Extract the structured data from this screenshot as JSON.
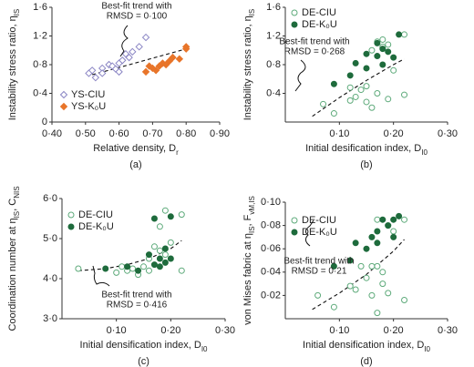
{
  "chart_data": [
    {
      "type": "scatter",
      "panel_label": "(a)",
      "x_label": [
        "Relative density, D",
        "r"
      ],
      "y_label": [
        "Instability stress ratio, η",
        "IS"
      ],
      "xlim": [
        0.4,
        0.9
      ],
      "ylim": [
        0,
        1.6
      ],
      "xticks": [
        {
          "value": 0.4,
          "label": "0·40"
        },
        {
          "value": 0.5,
          "label": "0·50"
        },
        {
          "value": 0.6,
          "label": "0·60"
        },
        {
          "value": 0.7,
          "label": "0·70"
        },
        {
          "value": 0.8,
          "label": "0·80"
        },
        {
          "value": 0.9,
          "label": "0·90"
        }
      ],
      "yticks": [
        0,
        {
          "value": 0.4,
          "label": "0·4"
        },
        {
          "value": 0.8,
          "label": "0·8"
        },
        {
          "value": 1.2,
          "label": "1·2"
        },
        {
          "value": 1.6,
          "label": "1·6"
        }
      ],
      "marker": "diamond",
      "legend": "lower left",
      "series": [
        {
          "name": "YS-CIU",
          "color": "#8a85c4",
          "filled": false,
          "x": [
            0.51,
            0.52,
            0.53,
            0.55,
            0.55,
            0.57,
            0.58,
            0.59,
            0.6,
            0.61,
            0.62,
            0.63,
            0.64,
            0.66,
            0.68,
            0.6
          ],
          "values": [
            0.68,
            0.72,
            0.62,
            0.75,
            0.68,
            0.8,
            0.78,
            0.74,
            0.82,
            0.86,
            0.95,
            0.9,
            0.98,
            1.05,
            1.18,
            0.7
          ]
        },
        {
          "name": "YS-K₀U",
          "color": "#e8752a",
          "filled": true,
          "x": [
            0.68,
            0.7,
            0.72,
            0.73,
            0.75,
            0.76,
            0.78,
            0.8,
            0.8,
            0.69,
            0.71,
            0.74
          ],
          "values": [
            0.7,
            0.75,
            0.78,
            0.82,
            0.85,
            0.9,
            0.88,
            1.02,
            1.05,
            0.78,
            0.72,
            0.8
          ]
        }
      ],
      "trend": {
        "x": [
          0.52,
          0.6,
          0.7,
          0.8
        ],
        "y": [
          0.66,
          0.76,
          0.89,
          1.02
        ]
      },
      "annotation": [
        "Best-fit trend with",
        "RMSD = 0·100"
      ]
    },
    {
      "type": "scatter",
      "panel_label": "(b)",
      "x_label": [
        "Initial desification index, D",
        "I0"
      ],
      "y_label": [
        "Instability stress ratio, η",
        "IS"
      ],
      "xlim": [
        0,
        0.3
      ],
      "ylim": [
        0,
        1.6
      ],
      "xticks": [
        {
          "value": 0.1,
          "label": "0·10"
        },
        {
          "value": 0.2,
          "label": "0·20"
        },
        {
          "value": 0.3,
          "label": "0·30"
        }
      ],
      "yticks": [
        {
          "value": 0.4,
          "label": "0·4"
        },
        {
          "value": 0.8,
          "label": "0·8"
        },
        {
          "value": 1.2,
          "label": "1·2"
        },
        {
          "value": 1.6,
          "label": "1·6"
        }
      ],
      "marker": "circle",
      "legend": "upper left",
      "series": [
        {
          "name": "DE-CIU",
          "color": "#5daa7a",
          "filled": false,
          "x": [
            0.07,
            0.09,
            0.12,
            0.13,
            0.14,
            0.15,
            0.16,
            0.16,
            0.17,
            0.18,
            0.18,
            0.19,
            0.2,
            0.22,
            0.22,
            0.17,
            0.19,
            0.12,
            0.15
          ],
          "values": [
            0.25,
            0.12,
            0.48,
            0.35,
            0.45,
            0.28,
            0.2,
            1.0,
            1.12,
            1.05,
            1.15,
            1.08,
            0.72,
            1.22,
            0.38,
            0.4,
            0.32,
            0.3,
            0.5
          ]
        },
        {
          "name": "DE-K₀U",
          "color": "#1e6b3c",
          "filled": true,
          "x": [
            0.09,
            0.12,
            0.13,
            0.15,
            0.15,
            0.17,
            0.18,
            0.18,
            0.19,
            0.2,
            0.21,
            0.17
          ],
          "values": [
            0.53,
            0.65,
            0.82,
            0.95,
            0.75,
            0.92,
            0.8,
            1.02,
            0.98,
            0.9,
            1.22,
            1.1
          ]
        }
      ],
      "trend": {
        "x": [
          0.05,
          0.1,
          0.15,
          0.2,
          0.22
        ],
        "y": [
          0.08,
          0.34,
          0.58,
          0.8,
          0.88
        ]
      },
      "annotation": [
        "Best-fit trend with",
        "RMSD = 0·268"
      ]
    },
    {
      "type": "scatter",
      "panel_label": "(c)",
      "x_label": [
        "Initial densification index, D",
        "I0"
      ],
      "y_label": [
        "Coordination number at η",
        "IS",
        ", C",
        "NIS"
      ],
      "xlim": [
        0,
        0.3
      ],
      "ylim": [
        3,
        6
      ],
      "xticks": [
        {
          "value": 0.1,
          "label": "0·10"
        },
        {
          "value": 0.2,
          "label": "0·20"
        },
        {
          "value": 0.3,
          "label": "0·30"
        }
      ],
      "yticks": [
        {
          "value": 3,
          "label": "3·0"
        },
        {
          "value": 4,
          "label": "4·0"
        },
        {
          "value": 5,
          "label": "5·0"
        },
        {
          "value": 6,
          "label": "6·0"
        }
      ],
      "marker": "circle",
      "legend": "upper left",
      "series": [
        {
          "name": "DE-CIU",
          "color": "#5daa7a",
          "filled": false,
          "x": [
            0.03,
            0.1,
            0.12,
            0.13,
            0.15,
            0.16,
            0.17,
            0.18,
            0.19,
            0.2,
            0.22,
            0.22,
            0.16,
            0.18,
            0.19,
            0.14,
            0.11
          ],
          "values": [
            4.25,
            4.15,
            4.2,
            4.25,
            4.3,
            4.2,
            4.8,
            5.3,
            5.7,
            4.9,
            5.6,
            4.2,
            4.5,
            4.7,
            4.6,
            4.1,
            4.3
          ]
        },
        {
          "name": "DE-K₀U",
          "color": "#1e6b3c",
          "filled": true,
          "x": [
            0.08,
            0.12,
            0.14,
            0.17,
            0.18,
            0.19,
            0.2,
            0.17,
            0.2,
            0.16,
            0.18,
            0.19
          ],
          "values": [
            4.25,
            4.3,
            4.2,
            4.35,
            4.3,
            4.4,
            4.5,
            5.5,
            5.55,
            4.6,
            4.5,
            4.75
          ]
        }
      ],
      "trend": {
        "x": [
          0.03,
          0.08,
          0.12,
          0.16,
          0.2,
          0.22
        ],
        "y": [
          4.2,
          4.25,
          4.35,
          4.5,
          4.75,
          4.95
        ]
      },
      "annotation": [
        "Best-fit trend with",
        "RMSD = 0·416"
      ]
    },
    {
      "type": "scatter",
      "panel_label": "(d)",
      "x_label": [
        "Initial densification index, D",
        "I0"
      ],
      "y_label": [
        "von Mises fabric at η",
        "IS",
        ", F",
        "vM,IS"
      ],
      "xlim": [
        0,
        0.3
      ],
      "ylim": [
        0,
        0.1
      ],
      "xticks": [
        {
          "value": 0.1,
          "label": "0·10"
        },
        {
          "value": 0.2,
          "label": "0·20"
        },
        {
          "value": 0.3,
          "label": "0·30"
        }
      ],
      "yticks": [
        {
          "value": 0.02,
          "label": "0·02"
        },
        {
          "value": 0.04,
          "label": "0·04"
        },
        {
          "value": 0.06,
          "label": "0·06"
        },
        {
          "value": 0.08,
          "label": "0·08"
        },
        {
          "value": 0.1,
          "label": "0·10"
        }
      ],
      "marker": "circle",
      "legend": "upper left",
      "series": [
        {
          "name": "DE-CIU",
          "color": "#5daa7a",
          "filled": false,
          "x": [
            0.06,
            0.09,
            0.12,
            0.13,
            0.15,
            0.16,
            0.17,
            0.17,
            0.18,
            0.18,
            0.19,
            0.19,
            0.2,
            0.22,
            0.22,
            0.17,
            0.16,
            0.14
          ],
          "values": [
            0.02,
            0.01,
            0.028,
            0.025,
            0.035,
            0.02,
            0.005,
            0.045,
            0.04,
            0.03,
            0.022,
            0.08,
            0.075,
            0.085,
            0.016,
            0.085,
            0.045,
            0.045
          ]
        },
        {
          "name": "DE-K₀U",
          "color": "#1e6b3c",
          "filled": true,
          "x": [
            0.09,
            0.12,
            0.13,
            0.15,
            0.16,
            0.17,
            0.18,
            0.19,
            0.2,
            0.21,
            0.17,
            0.2
          ],
          "values": [
            0.045,
            0.05,
            0.065,
            0.06,
            0.07,
            0.075,
            0.085,
            0.08,
            0.085,
            0.088,
            0.065,
            0.07
          ]
        }
      ],
      "trend": {
        "x": [
          0.05,
          0.1,
          0.15,
          0.2,
          0.22
        ],
        "y": [
          0.008,
          0.022,
          0.038,
          0.058,
          0.068
        ]
      },
      "annotation": [
        "Best-fit trend with",
        "RMSD = 0·21"
      ]
    }
  ]
}
